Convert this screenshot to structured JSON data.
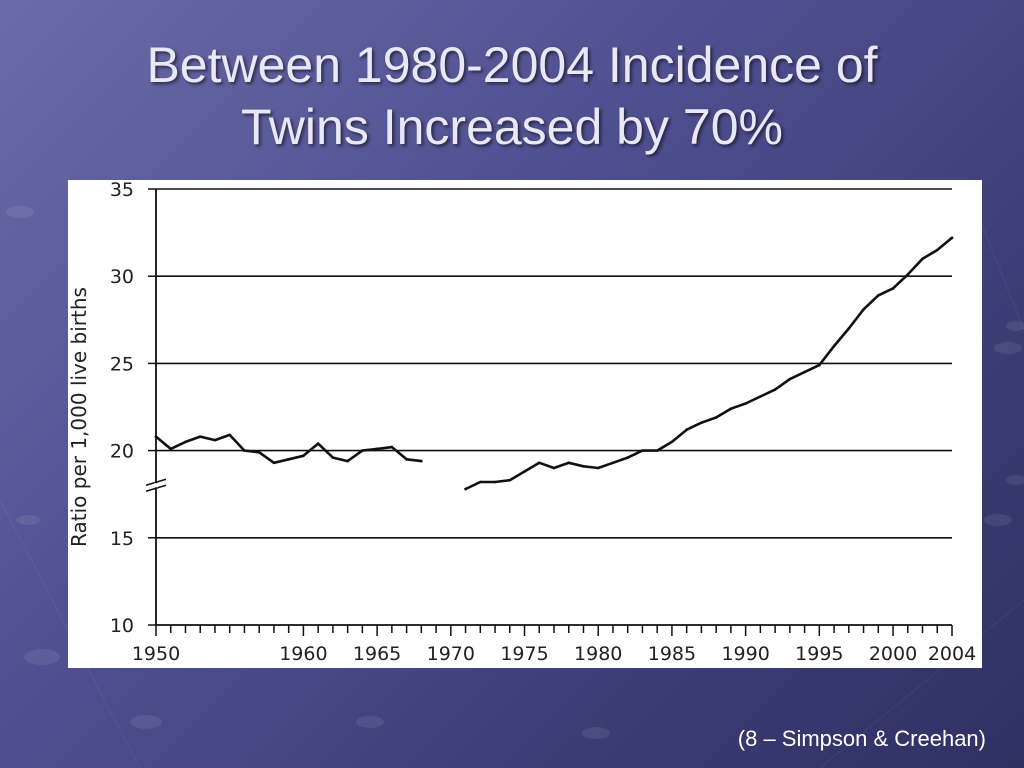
{
  "slide": {
    "title_line1": "Between 1980-2004 Incidence of",
    "title_line2": "Twins Increased by 70%",
    "citation": "(8 – Simpson & Creehan)"
  },
  "colors": {
    "background": "#4f5090",
    "title_text": "#e8e8f8",
    "chart_line": "#111111",
    "chart_panel": "#ffffff"
  },
  "chart_data": {
    "type": "line",
    "title": "",
    "xlabel": "",
    "ylabel": "Ratio per 1,000 live births",
    "xlim": [
      1950,
      2004
    ],
    "ylim": [
      10,
      35
    ],
    "ytick_labels": [
      "10",
      "15",
      "20",
      "25",
      "30",
      "35"
    ],
    "yticks": [
      10,
      15,
      20,
      25,
      30,
      35
    ],
    "xtick_labels": [
      "1950",
      "1960",
      "1965",
      "1970",
      "1975",
      "1980",
      "1985",
      "1990",
      "1995",
      "2000",
      "2004"
    ],
    "xticks": [
      1950,
      1960,
      1965,
      1970,
      1975,
      1980,
      1985,
      1990,
      1995,
      2000,
      2004
    ],
    "grid": "horizontal",
    "axis_break": true,
    "series": [
      {
        "segment": "1950-1968",
        "x": [
          1950,
          1951,
          1952,
          1953,
          1954,
          1955,
          1956,
          1957,
          1958,
          1959,
          1960,
          1961,
          1962,
          1963,
          1964,
          1965,
          1966,
          1967,
          1968
        ],
        "values": [
          20.8,
          20.1,
          20.5,
          20.8,
          20.6,
          20.9,
          20.0,
          19.9,
          19.3,
          19.5,
          19.7,
          20.4,
          19.6,
          19.4,
          20.0,
          20.1,
          20.2,
          19.5,
          19.4
        ]
      },
      {
        "segment": "1971-2004",
        "x": [
          1971,
          1972,
          1973,
          1974,
          1975,
          1976,
          1977,
          1978,
          1979,
          1980,
          1981,
          1982,
          1983,
          1984,
          1985,
          1986,
          1987,
          1988,
          1989,
          1990,
          1991,
          1992,
          1993,
          1994,
          1995,
          1996,
          1997,
          1998,
          1999,
          2000,
          2001,
          2002,
          2003,
          2004
        ],
        "values": [
          17.8,
          18.2,
          18.2,
          18.3,
          18.8,
          19.3,
          19.0,
          19.3,
          19.1,
          19.0,
          19.3,
          19.6,
          20.0,
          20.0,
          20.5,
          21.2,
          21.6,
          21.9,
          22.4,
          22.7,
          23.1,
          23.5,
          24.1,
          24.5,
          24.9,
          26.0,
          27.0,
          28.1,
          28.9,
          29.3,
          30.1,
          31.0,
          31.5,
          32.2
        ]
      }
    ]
  }
}
